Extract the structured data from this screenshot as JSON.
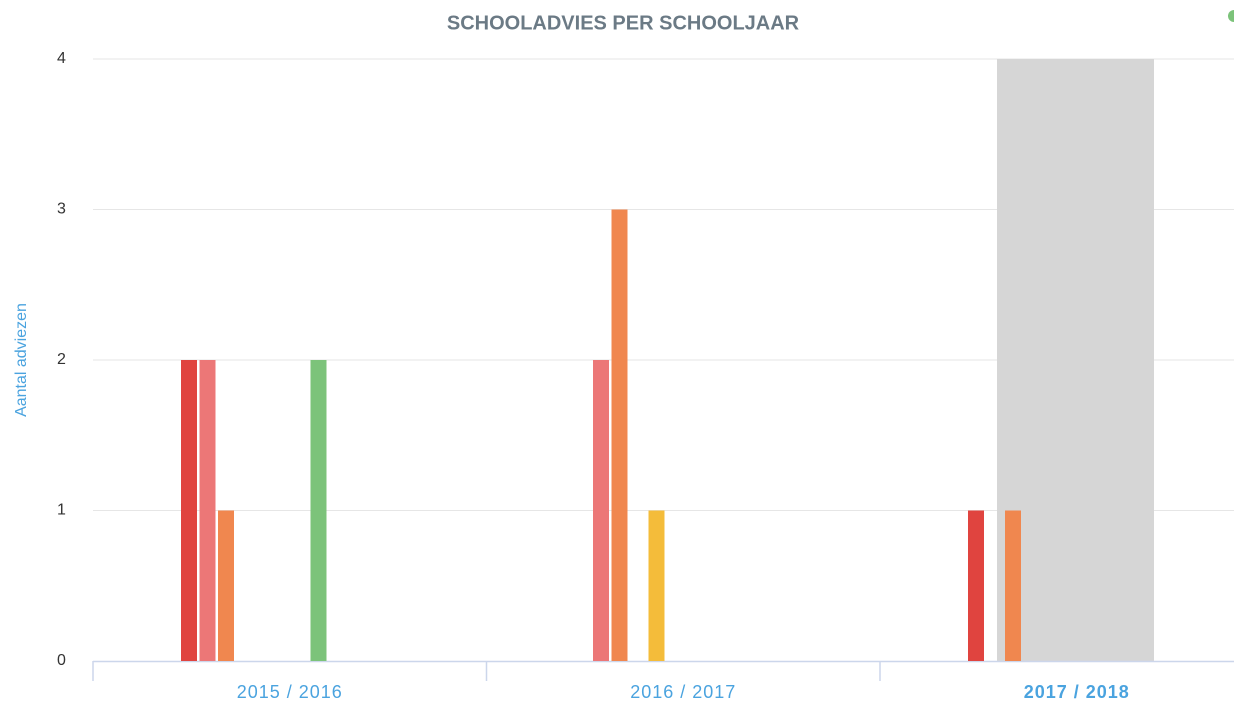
{
  "chart_data": {
    "type": "bar",
    "title": "SCHOOLADVIES PER SCHOOLJAAR",
    "y_label": "Aantal adviezen",
    "categories": [
      "2015 / 2016",
      "2016 / 2017",
      "2017 / 2018"
    ],
    "series": [
      {
        "color": "#e0443f",
        "values": [
          2,
          0,
          1
        ]
      },
      {
        "color": "#ec7777",
        "values": [
          2,
          2,
          0
        ]
      },
      {
        "color": "#f0874f",
        "values": [
          1,
          3,
          1
        ]
      },
      {
        "color": "#f4bc3a",
        "values": [
          0,
          1,
          0
        ]
      },
      {
        "color": "#7cc37a",
        "values": [
          2,
          0,
          0
        ]
      }
    ],
    "ylim": [
      0,
      4
    ],
    "yticks": [
      0,
      1,
      2,
      3,
      4
    ],
    "grid": true
  }
}
